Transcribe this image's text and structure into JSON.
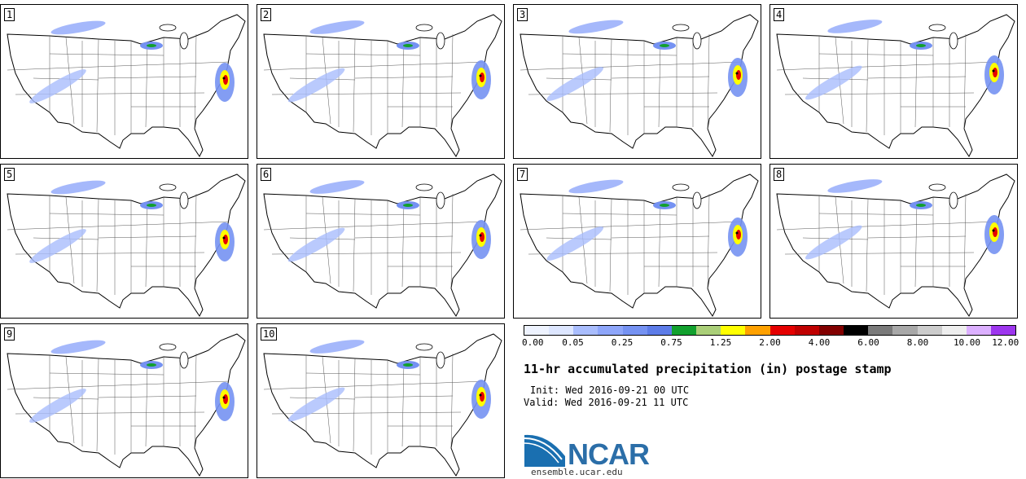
{
  "panels": [
    {
      "label": "1"
    },
    {
      "label": "2"
    },
    {
      "label": "3"
    },
    {
      "label": "4"
    },
    {
      "label": "5"
    },
    {
      "label": "6"
    },
    {
      "label": "7"
    },
    {
      "label": "8"
    },
    {
      "label": "9"
    },
    {
      "label": "10"
    }
  ],
  "colorbar": {
    "colors": [
      "#eef3ff",
      "#dde6ff",
      "#a9bdfd",
      "#8ea6fa",
      "#7592f2",
      "#5d7ce8",
      "#12a02e",
      "#aacf78",
      "#ffff00",
      "#ffa100",
      "#e50000",
      "#bf0000",
      "#820000",
      "#000000",
      "#7a7a7a",
      "#a8a8a8",
      "#cccccc",
      "#eeeeee",
      "#dcb0ff",
      "#9d36ee"
    ],
    "ticks": [
      "0.00",
      "0.05",
      "0.25",
      "0.75",
      "1.25",
      "2.00",
      "4.00",
      "6.00",
      "8.00",
      "10.00",
      "12.00"
    ]
  },
  "title": "11-hr accumulated precipitation (in) postage stamp",
  "init": "Init: Wed 2016-09-21 00 UTC",
  "valid": "Valid: Wed 2016-09-21 11 UTC",
  "logo": {
    "name": "NCAR",
    "url": "ensemble.ucar.edu"
  }
}
